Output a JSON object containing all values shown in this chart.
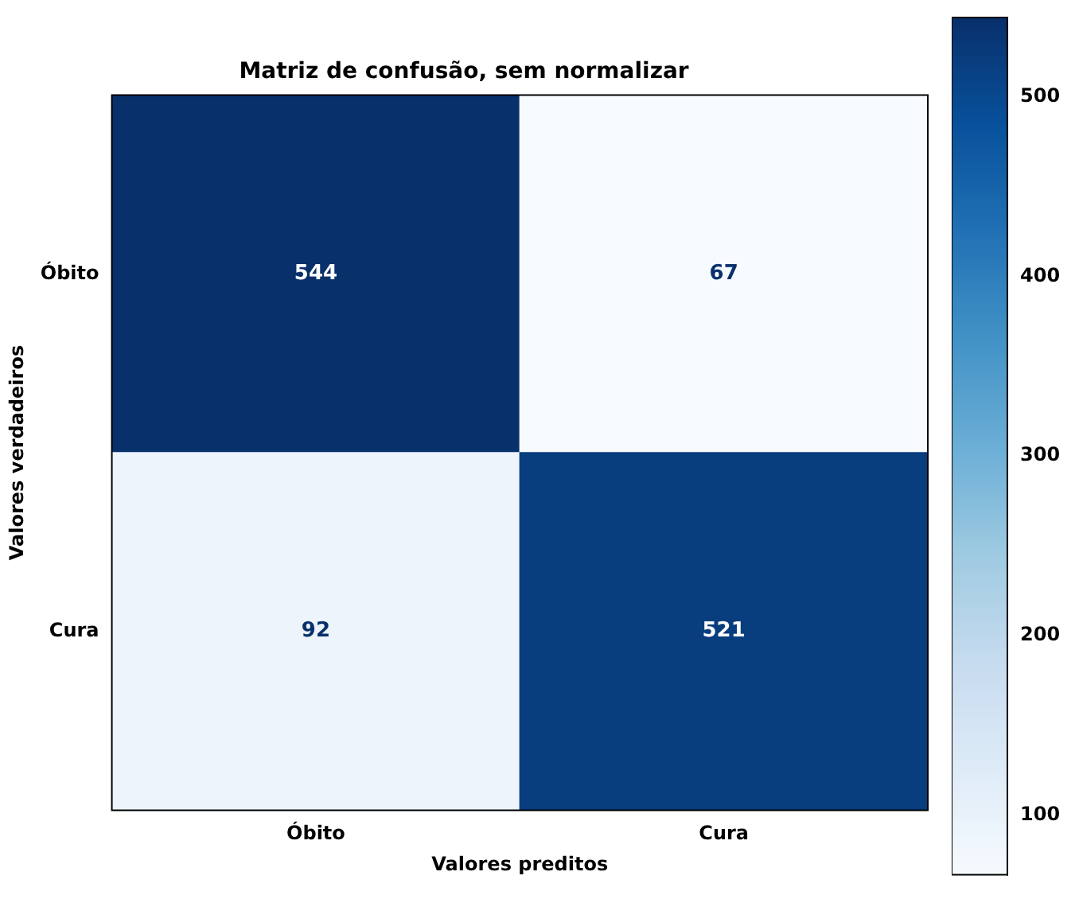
{
  "chart_data": {
    "type": "heatmap",
    "title": "Matriz de confusão, sem normalizar",
    "xlabel": "Valores preditos",
    "ylabel": "Valores verdadeiros",
    "categories": [
      "Óbito",
      "Cura"
    ],
    "y_categories": [
      "Óbito",
      "Cura"
    ],
    "cells": [
      [
        544,
        67
      ],
      [
        92,
        521
      ]
    ],
    "data_labels": true,
    "clim": [
      67,
      544
    ],
    "cticks": [
      100,
      200,
      300,
      400,
      500
    ]
  }
}
